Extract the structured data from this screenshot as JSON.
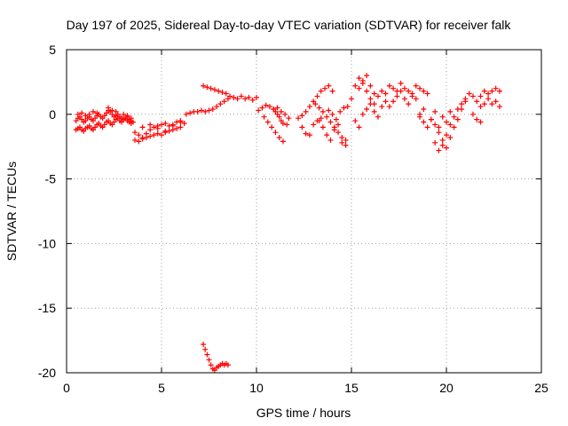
{
  "chart_data": {
    "type": "scatter",
    "title": "Day 197 of 2025, Sidereal Day-to-day VTEC variation (SDTVAR) for receiver falk",
    "xlabel": "GPS time / hours",
    "ylabel": "SDTVAR / TECUs",
    "xlim": [
      0,
      25
    ],
    "ylim": [
      -20,
      5
    ],
    "xticks": [
      0,
      5,
      10,
      15,
      20,
      25
    ],
    "yticks": [
      5,
      0,
      -5,
      -10,
      -15,
      -20
    ],
    "xtick_labels": [
      "0",
      "5",
      "10",
      "15",
      "20",
      "25"
    ],
    "ytick_labels": [
      "5",
      "0",
      "-5",
      "-10",
      "-15",
      "-20"
    ],
    "grid": true,
    "marker": "plus",
    "color": "#ff0000",
    "series": [
      {
        "name": "SDTVAR",
        "x": [
          0.5,
          0.6,
          0.7,
          0.8,
          0.9,
          1.0,
          1.1,
          1.2,
          1.3,
          1.4,
          1.5,
          1.6,
          1.7,
          1.8,
          1.9,
          2.0,
          2.1,
          2.2,
          2.3,
          2.4,
          2.5,
          2.6,
          2.7,
          2.8,
          2.9,
          3.0,
          3.1,
          3.2,
          3.3,
          3.4,
          3.5,
          0.5,
          0.6,
          0.7,
          0.8,
          0.9,
          1.0,
          1.1,
          1.2,
          1.3,
          1.4,
          1.5,
          1.6,
          1.7,
          1.8,
          1.9,
          2.0,
          2.1,
          2.2,
          2.3,
          2.4,
          2.5,
          2.6,
          2.7,
          2.8,
          2.9,
          3.0,
          3.1,
          3.2,
          3.3,
          3.4,
          0.6,
          0.8,
          1.0,
          1.2,
          1.4,
          1.6,
          2.2,
          2.4,
          2.6,
          3.0,
          3.2,
          3.4,
          3.6,
          3.8,
          4.0,
          4.2,
          4.4,
          4.6,
          4.8,
          5.0,
          5.2,
          5.4,
          5.6,
          5.8,
          6.0,
          6.2,
          3.6,
          3.8,
          4.0,
          4.2,
          4.4,
          4.6,
          4.8,
          5.0,
          5.2,
          5.4,
          5.6,
          5.8,
          6.0,
          4.0,
          4.4,
          4.8,
          5.2,
          5.6,
          6.0,
          6.3,
          6.5,
          6.7,
          6.9,
          7.1,
          7.3,
          7.5,
          7.7,
          7.9,
          8.1,
          8.3,
          8.5,
          7.2,
          7.4,
          7.6,
          7.8,
          8.0,
          8.2,
          8.4,
          8.6,
          8.8,
          9.0,
          9.2,
          9.4,
          9.6,
          9.8,
          10.0,
          7.2,
          7.3,
          7.4,
          7.5,
          7.6,
          7.7,
          7.8,
          7.9,
          8.0,
          8.1,
          8.2,
          8.3,
          8.4,
          8.5,
          10.1,
          10.3,
          10.5,
          10.7,
          10.9,
          11.1,
          11.3,
          11.5,
          11.7,
          10.4,
          10.6,
          10.8,
          11.0,
          11.2,
          11.4,
          11.6,
          10.9,
          11.0,
          11.1,
          11.2,
          11.3,
          11.4,
          12.2,
          12.4,
          12.6,
          12.8,
          13.0,
          13.2,
          13.4,
          13.6,
          13.8,
          14.0,
          12.4,
          12.6,
          12.8,
          13.0,
          13.2,
          13.4,
          13.1,
          13.3,
          13.5,
          13.7,
          13.9,
          14.1,
          14.3,
          14.5,
          14.7,
          13.3,
          13.5,
          13.7,
          13.9,
          14.1,
          14.3,
          14.5,
          14.7,
          13.8,
          14.0,
          14.2,
          14.4,
          14.6,
          14.8,
          15.0,
          15.2,
          15.4,
          15.6,
          15.8,
          16.0,
          16.2,
          16.4,
          16.6,
          16.8,
          15.2,
          15.4,
          15.6,
          15.8,
          16.0,
          16.2,
          16.4,
          16.6,
          15.4,
          15.6,
          15.8,
          16.0,
          16.2,
          16.8,
          17.0,
          17.2,
          17.4,
          17.6,
          17.8,
          18.0,
          18.2,
          18.4,
          18.6,
          18.8,
          19.0,
          17.0,
          17.2,
          17.4,
          17.6,
          17.8,
          18.0,
          18.2,
          18.4,
          18.6,
          18.8,
          18.6,
          18.8,
          19.0,
          19.2,
          19.4,
          19.2,
          19.4,
          19.6,
          19.8,
          20.0,
          20.2,
          20.4,
          20.6,
          20.8,
          21.0,
          21.2,
          21.4,
          19.4,
          19.6,
          19.8,
          20.0,
          20.2,
          20.4,
          20.6,
          20.8,
          21.0,
          19.6,
          19.8,
          20.0,
          20.2,
          21.6,
          21.8,
          22.0,
          22.2,
          22.4,
          22.6,
          22.8,
          21.8,
          22.0,
          22.2,
          22.4,
          22.6,
          22.8,
          21.4,
          21.6,
          21.8
        ],
        "y": [
          -0.5,
          -0.3,
          -0.2,
          -0.4,
          -0.6,
          -0.5,
          -0.3,
          -0.2,
          -0.4,
          -0.5,
          -0.3,
          -0.1,
          0.0,
          -0.2,
          -0.3,
          -0.1,
          0.1,
          0.3,
          0.2,
          0.0,
          -0.2,
          -0.1,
          0.0,
          -0.2,
          -0.3,
          -0.4,
          -0.3,
          -0.2,
          -0.4,
          -0.5,
          -0.6,
          -1.2,
          -1.1,
          -1.0,
          -1.2,
          -1.3,
          -1.1,
          -1.0,
          -0.9,
          -1.1,
          -1.2,
          -1.0,
          -0.8,
          -0.7,
          -0.9,
          -1.0,
          -0.8,
          -0.6,
          -0.5,
          -0.7,
          -0.8,
          -0.6,
          -0.4,
          -0.3,
          -0.5,
          -0.6,
          -0.4,
          -0.3,
          -0.5,
          -0.6,
          -0.7,
          0.0,
          0.1,
          -0.1,
          0.0,
          0.2,
          0.1,
          0.5,
          0.3,
          0.2,
          0.0,
          -0.1,
          -0.3,
          -1.4,
          -1.6,
          -1.8,
          -1.5,
          -1.2,
          -1.0,
          -0.9,
          -0.8,
          -0.7,
          -0.9,
          -0.8,
          -0.6,
          -0.5,
          -0.7,
          -2.0,
          -2.1,
          -1.9,
          -1.8,
          -1.7,
          -1.6,
          -1.5,
          -1.6,
          -1.4,
          -1.3,
          -1.2,
          -1.1,
          -1.0,
          -1.0,
          -0.8,
          -1.1,
          -1.3,
          -0.9,
          -0.6,
          0.0,
          0.1,
          0.2,
          0.2,
          0.3,
          0.2,
          0.3,
          0.4,
          0.6,
          0.8,
          1.0,
          1.2,
          2.2,
          2.1,
          2.0,
          1.9,
          1.8,
          1.7,
          1.6,
          1.4,
          1.3,
          1.2,
          1.4,
          1.2,
          1.3,
          1.1,
          1.3,
          -17.8,
          -18.2,
          -18.6,
          -19.0,
          -19.4,
          -19.7,
          -19.8,
          -19.6,
          -19.5,
          -19.4,
          -19.3,
          -19.4,
          -19.3,
          -19.4,
          0.3,
          0.5,
          0.7,
          0.6,
          0.4,
          0.5,
          0.2,
          0.0,
          -0.3,
          -0.2,
          -0.6,
          -1.0,
          -1.4,
          -1.8,
          -2.1,
          -0.8,
          0.4,
          0.2,
          0.0,
          -0.2,
          -0.5,
          -0.7,
          -0.3,
          -0.1,
          0.2,
          0.6,
          1.0,
          1.4,
          1.8,
          2.0,
          2.2,
          1.8,
          -1.0,
          -1.5,
          -1.6,
          -0.8,
          -0.5,
          -0.3,
          0.8,
          0.5,
          0.2,
          -0.2,
          -0.6,
          -1.0,
          -1.4,
          -1.8,
          -2.0,
          -0.5,
          -1.0,
          -1.6,
          -2.0,
          -1.2,
          -0.8,
          -2.2,
          -2.4,
          0.3,
          0.0,
          -0.4,
          0.2,
          0.5,
          0.6,
          1.2,
          2.2,
          2.8,
          2.4,
          1.8,
          1.2,
          0.8,
          1.4,
          1.8,
          1.0,
          -0.5,
          -1.0,
          0.0,
          0.4,
          0.8,
          0.2,
          -0.2,
          0.6,
          2.0,
          2.6,
          3.0,
          2.2,
          1.6,
          1.6,
          2.2,
          2.0,
          1.8,
          2.4,
          2.0,
          1.8,
          1.6,
          2.2,
          2.0,
          1.8,
          1.6,
          0.6,
          1.0,
          1.4,
          1.8,
          1.2,
          0.8,
          1.4,
          1.2,
          0.0,
          0.4,
          -0.2,
          -0.6,
          -1.0,
          -0.4,
          0.2,
          -0.4,
          -0.8,
          -1.4,
          -2.0,
          -2.6,
          -1.8,
          -1.0,
          -0.4,
          0.4,
          1.0,
          1.6,
          1.4,
          -2.2,
          -2.8,
          -2.4,
          -1.6,
          -0.8,
          -0.2,
          0.4,
          0.8,
          1.2,
          -1.0,
          -0.2,
          -0.6,
          0.2,
          1.0,
          1.4,
          1.8,
          1.6,
          1.8,
          2.0,
          1.8,
          0.6,
          0.8,
          1.2,
          0.8,
          1.0,
          0.6,
          0.0,
          -0.4,
          -0.6
        ]
      }
    ]
  }
}
